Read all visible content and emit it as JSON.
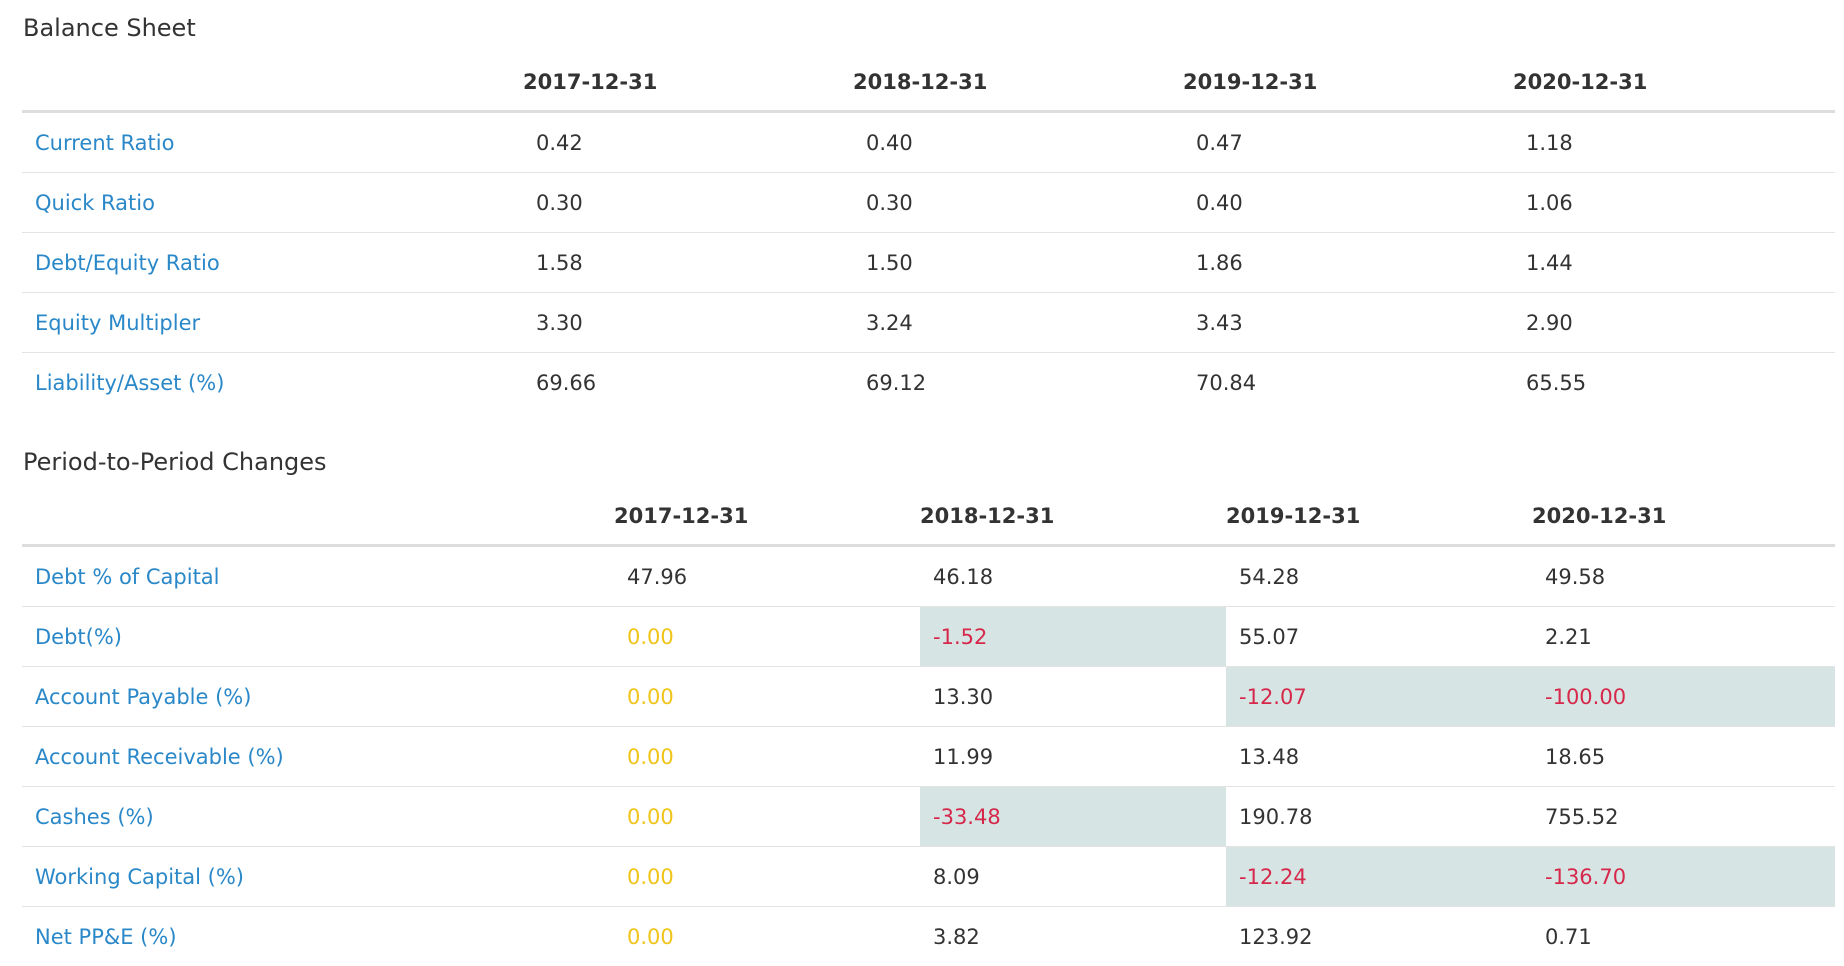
{
  "balance_sheet": {
    "title": "Balance Sheet",
    "columns": [
      "2017-12-31",
      "2018-12-31",
      "2019-12-31",
      "2020-12-31"
    ],
    "rows": [
      {
        "label": "Current Ratio",
        "values": [
          "0.42",
          "0.40",
          "0.47",
          "1.18"
        ]
      },
      {
        "label": "Quick Ratio",
        "values": [
          "0.30",
          "0.30",
          "0.40",
          "1.06"
        ]
      },
      {
        "label": "Debt/Equity Ratio",
        "values": [
          "1.58",
          "1.50",
          "1.86",
          "1.44"
        ]
      },
      {
        "label": "Equity Multipler",
        "values": [
          "3.30",
          "3.24",
          "3.43",
          "2.90"
        ]
      },
      {
        "label": "Liability/Asset (%)",
        "values": [
          "69.66",
          "69.12",
          "70.84",
          "65.55"
        ]
      }
    ]
  },
  "period_changes": {
    "title": "Period-to-Period Changes",
    "columns": [
      "2017-12-31",
      "2018-12-31",
      "2019-12-31",
      "2020-12-31"
    ],
    "rows": [
      {
        "label": "Debt % of Capital",
        "values": [
          "47.96",
          "46.18",
          "54.28",
          "49.58"
        ]
      },
      {
        "label": "Debt(%)",
        "values": [
          "0.00",
          "-1.52",
          "55.07",
          "2.21"
        ]
      },
      {
        "label": "Account Payable (%)",
        "values": [
          "0.00",
          "13.30",
          "-12.07",
          "-100.00"
        ]
      },
      {
        "label": "Account Receivable (%)",
        "values": [
          "0.00",
          "11.99",
          "13.48",
          "18.65"
        ]
      },
      {
        "label": "Cashes (%)",
        "values": [
          "0.00",
          "-33.48",
          "190.78",
          "755.52"
        ]
      },
      {
        "label": "Working Capital (%)",
        "values": [
          "0.00",
          "8.09",
          "-12.24",
          "-136.70"
        ]
      },
      {
        "label": "Net PP&E (%)",
        "values": [
          "0.00",
          "3.82",
          "123.92",
          "0.71"
        ]
      }
    ]
  },
  "colors": {
    "link": "#2a88c9",
    "zero": "#f0c419",
    "negative_text": "#d6284a",
    "negative_background": "#d6e4e4"
  }
}
